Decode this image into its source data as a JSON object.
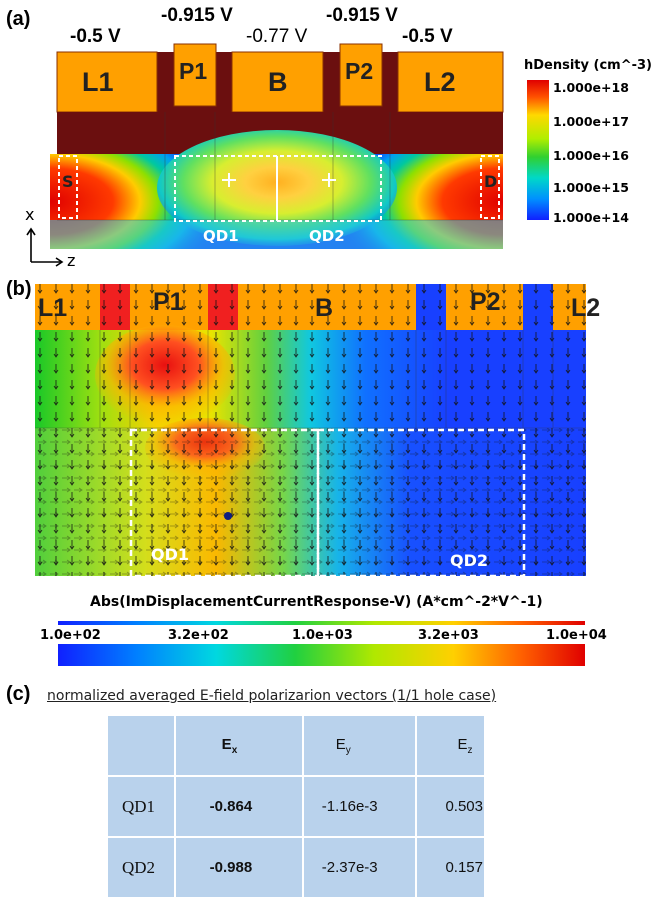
{
  "panel_a": {
    "label": "(a)",
    "voltages": {
      "l1": "-0.5 V",
      "p1": "-0.915 V",
      "b": "-0.77 V",
      "p2": "-0.915 V",
      "l2": "-0.5 V"
    },
    "gates": {
      "l1": "L1",
      "p1": "P1",
      "b": "B",
      "p2": "P2",
      "l2": "L2"
    },
    "contacts": {
      "source": "S",
      "drain": "D"
    },
    "dots": {
      "qd1": "QD1",
      "qd2": "QD2"
    },
    "axes": {
      "x": "x",
      "z": "z"
    },
    "legend": {
      "title": "hDensity (cm^-3)",
      "ticks": [
        "1.000e+18",
        "1.000e+17",
        "1.000e+16",
        "1.000e+15",
        "1.000e+14"
      ]
    }
  },
  "panel_b": {
    "label": "(b)",
    "gates": {
      "l1": "L1",
      "p1": "P1",
      "b": "B",
      "p2": "P2",
      "l2": "L2"
    },
    "dots": {
      "qd1": "QD1",
      "qd2": "QD2"
    },
    "colorbar": {
      "title": "Abs(ImDisplacementCurrentResponse-V) (A*cm^-2*V^-1)",
      "ticks": [
        "1.0e+02",
        "3.2e+02",
        "1.0e+03",
        "3.2e+03",
        "1.0e+04"
      ]
    }
  },
  "panel_c": {
    "label": "(c)",
    "title": "normalized averaged E-field polarizarion vectors (1/1 hole case)",
    "headers": [
      "",
      "E",
      "E",
      "E"
    ],
    "header_subs": [
      "",
      "x",
      "y",
      "z"
    ],
    "rows": [
      {
        "name": "QD1",
        "ex": "-0.864",
        "ey": "-1.16e-3",
        "ez": "0.503"
      },
      {
        "name": "QD2",
        "ex": "-0.988",
        "ey": "-2.37e-3",
        "ez": "0.157"
      }
    ]
  }
}
